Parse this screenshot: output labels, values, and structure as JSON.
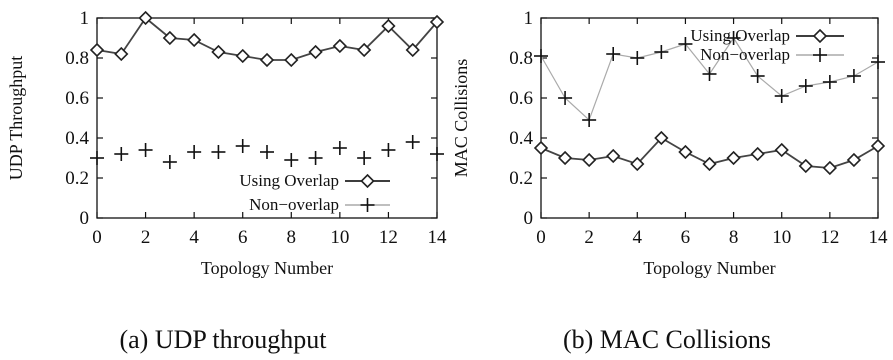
{
  "chart_data": [
    {
      "type": "line",
      "caption": "(a) UDP throughput",
      "xlabel": "Topology Number",
      "ylabel": "UDP Throughput",
      "xlim": [
        0,
        14
      ],
      "ylim": [
        0,
        1
      ],
      "xticks": [
        "0",
        "2",
        "4",
        "6",
        "8",
        "10",
        "12",
        "14"
      ],
      "yticks": [
        "0",
        "0.2",
        "0.4",
        "0.6",
        "0.8",
        "1"
      ],
      "legend_position": "bottom-right",
      "grid": false,
      "series": [
        {
          "name": "Using Overlap",
          "marker": "diamond",
          "color": "#000000",
          "x": [
            0,
            1,
            2,
            3,
            4,
            5,
            6,
            7,
            8,
            9,
            10,
            11,
            12,
            13,
            14
          ],
          "values": [
            0.84,
            0.82,
            1.0,
            0.9,
            0.89,
            0.83,
            0.81,
            0.79,
            0.79,
            0.83,
            0.86,
            0.84,
            0.96,
            0.84,
            0.98
          ]
        },
        {
          "name": "Non−overlap",
          "marker": "plus",
          "color": "#000000",
          "x": [
            0,
            1,
            2,
            3,
            4,
            5,
            6,
            7,
            8,
            9,
            10,
            11,
            12,
            13,
            14
          ],
          "values": [
            0.3,
            0.32,
            0.34,
            0.28,
            0.33,
            0.33,
            0.36,
            0.33,
            0.29,
            0.3,
            0.35,
            0.3,
            0.34,
            0.38,
            0.32
          ]
        }
      ]
    },
    {
      "type": "line",
      "caption": "(b) MAC Collisions",
      "xlabel": "Topology Number",
      "ylabel": "MAC Collisions",
      "xlim": [
        0,
        14
      ],
      "ylim": [
        0,
        1
      ],
      "xticks": [
        "0",
        "2",
        "4",
        "6",
        "8",
        "10",
        "12",
        "14"
      ],
      "yticks": [
        "0",
        "0.2",
        "0.4",
        "0.6",
        "0.8",
        "1"
      ],
      "legend_position": "top-right",
      "grid": false,
      "series": [
        {
          "name": "Using Overlap",
          "marker": "diamond",
          "color": "#000000",
          "x": [
            0,
            1,
            2,
            3,
            4,
            5,
            6,
            7,
            8,
            9,
            10,
            11,
            12,
            13,
            14
          ],
          "values": [
            0.35,
            0.3,
            0.29,
            0.31,
            0.27,
            0.4,
            0.33,
            0.27,
            0.3,
            0.32,
            0.34,
            0.26,
            0.25,
            0.29,
            0.36
          ]
        },
        {
          "name": "Non−overlap",
          "marker": "plus",
          "color": "#000000",
          "x": [
            0,
            1,
            2,
            3,
            4,
            5,
            6,
            7,
            8,
            9,
            10,
            11,
            12,
            13,
            14
          ],
          "values": [
            0.81,
            0.6,
            0.49,
            0.82,
            0.8,
            0.83,
            0.87,
            0.72,
            0.9,
            0.71,
            0.61,
            0.66,
            0.68,
            0.71,
            0.78
          ]
        }
      ]
    }
  ]
}
